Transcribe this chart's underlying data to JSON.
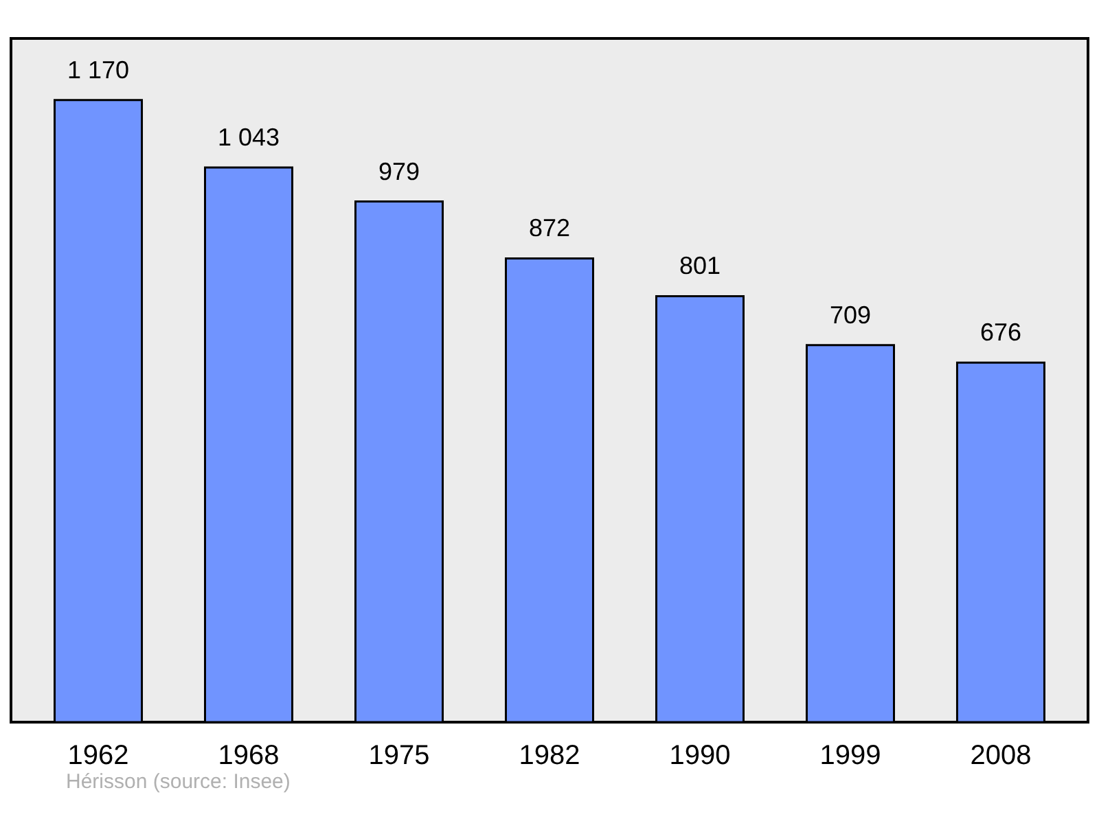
{
  "chart_data": {
    "type": "bar",
    "categories": [
      "1962",
      "1968",
      "1975",
      "1982",
      "1990",
      "1999",
      "2008"
    ],
    "values": [
      1170,
      1043,
      979,
      872,
      801,
      709,
      676
    ],
    "value_labels": [
      "1 170",
      "1 043",
      "979",
      "872",
      "801",
      "709",
      "676"
    ],
    "color": "#7094ff",
    "annotations": [
      "Hérisson    (source: Insee)"
    ],
    "grid": false
  }
}
